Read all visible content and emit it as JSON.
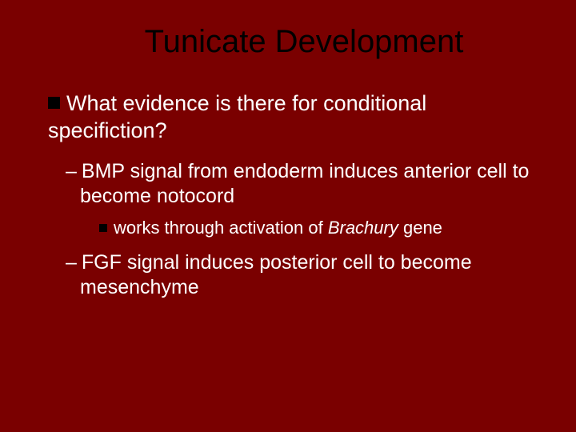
{
  "slide": {
    "background_color": "#7a0000",
    "text_color": "#ffffff",
    "title_color": "#000000",
    "bullet_color": "#000000",
    "title_fontsize": 40,
    "level1_fontsize": 27,
    "level2_fontsize": 25,
    "level3_fontsize": 22,
    "font_family": "Verdana",
    "title": "Tunicate Development",
    "level1_text": "What evidence is there for conditional specifiction?",
    "level2_item1": "BMP signal from endoderm induces anterior cell to become notocord",
    "level3_prefix": "works through activation of ",
    "level3_gene": "Brachury",
    "level3_suffix": " gene",
    "level2_item2": "FGF signal induces posterior cell to become mesenchyme"
  }
}
